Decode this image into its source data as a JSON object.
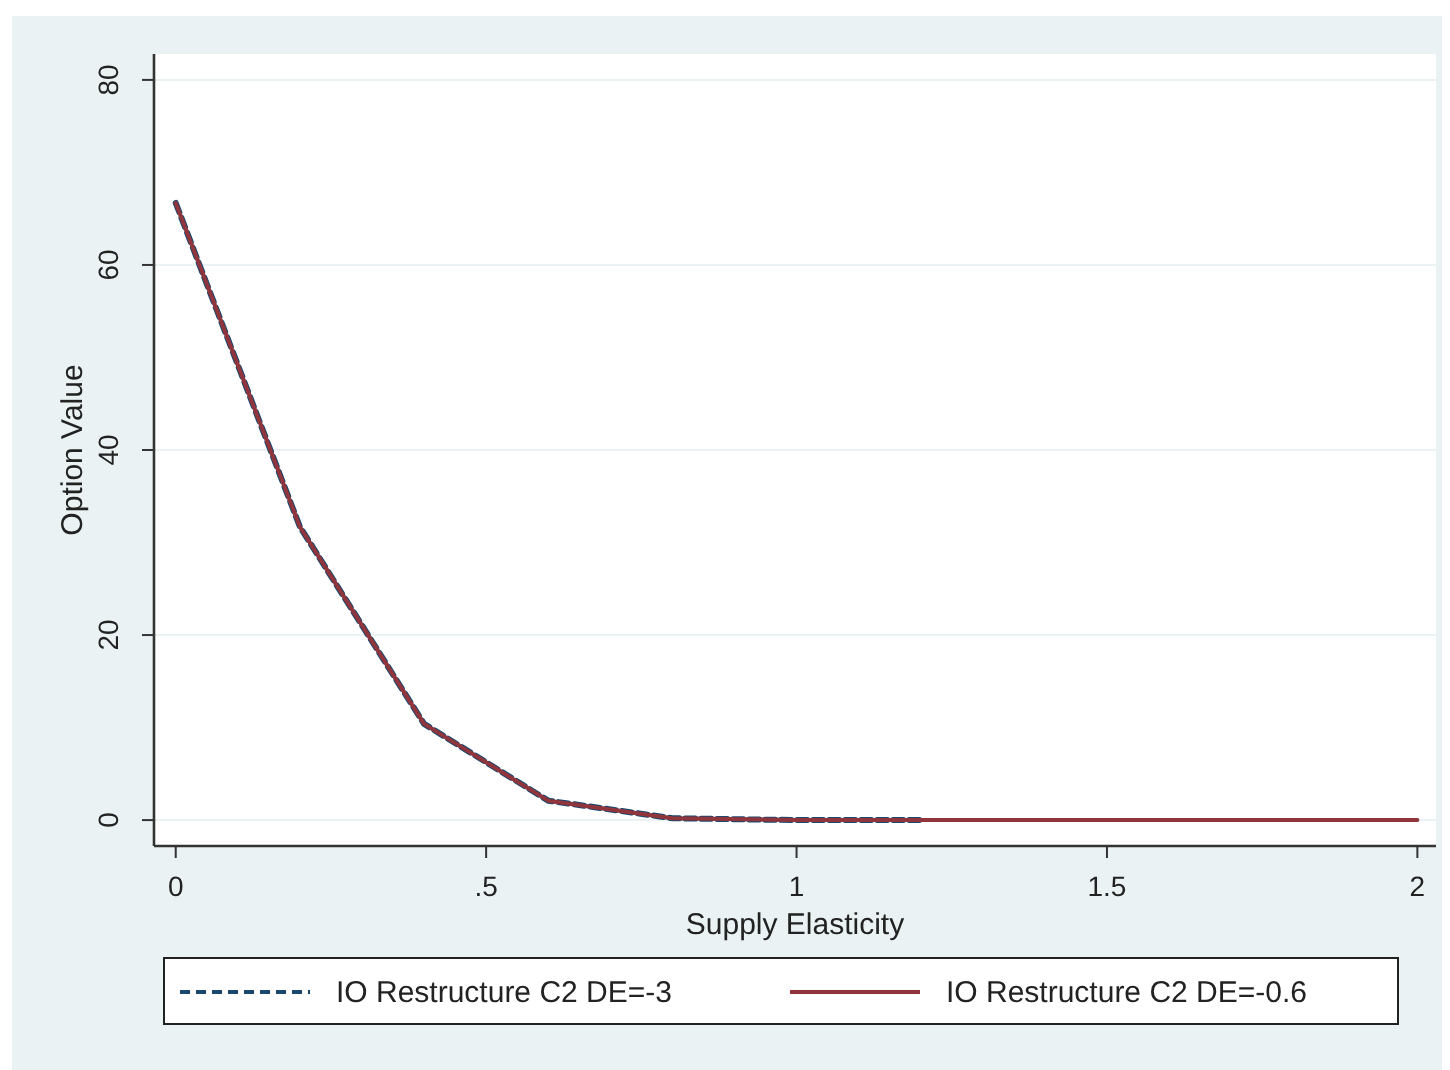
{
  "chart_data": {
    "type": "line",
    "xlabel": "Supply Elasticity",
    "ylabel": "Option Value",
    "x": [
      0,
      0.2,
      0.4,
      0.6,
      0.8,
      1,
      1.2,
      1.4,
      1.6,
      1.8,
      2
    ],
    "series": [
      {
        "name": "IO Restructure C2 DE=-3",
        "color": "#1a476f",
        "line_style": "dashed",
        "values": [
          66.7,
          31.7,
          10.4,
          2.1,
          0.2,
          0,
          0,
          null,
          null,
          null,
          null
        ]
      },
      {
        "name": "IO Restructure C2 DE=-0.6",
        "color": "#90353b",
        "line_style": "solid",
        "values": [
          66.7,
          31.7,
          10.4,
          2.1,
          0.2,
          0,
          0,
          0,
          0,
          0,
          0
        ]
      }
    ],
    "xlim": [
      -0.035,
      2.03
    ],
    "ylim": [
      -2.8,
      82.8
    ],
    "xticks": [
      0,
      {
        "value": 0.5,
        "label": ".5"
      },
      1,
      1.5,
      2
    ],
    "yticks": [
      0,
      20,
      40,
      60,
      80
    ],
    "grid": "y",
    "legend": "bottom",
    "marker": "none"
  }
}
